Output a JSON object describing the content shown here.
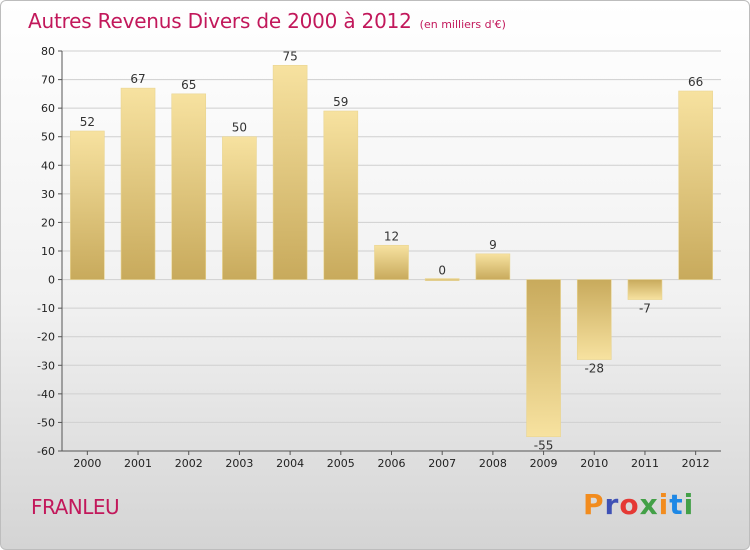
{
  "header": {
    "title": "Autres Revenus Divers de 2000 à 2012",
    "subtitle": "(en milliers d'€)"
  },
  "footer": {
    "commune": "FRANLEU",
    "logo_text": "Proxiti"
  },
  "colors": {
    "title": "#c2185b",
    "bar_light": "#f7e2a0",
    "bar_dark": "#c8aa5c",
    "grid": "#cfcfcf",
    "logo_letters": [
      "#f28c1e",
      "#3f51b5",
      "#e53935",
      "#43a047",
      "#f28c1e",
      "#1e88e5",
      "#43a047"
    ]
  },
  "chart_data": {
    "type": "bar",
    "title": "Autres Revenus Divers de 2000 à 2012",
    "subtitle": "(en milliers d'€)",
    "categories": [
      "2000",
      "2001",
      "2002",
      "2003",
      "2004",
      "2005",
      "2006",
      "2007",
      "2008",
      "2009",
      "2010",
      "2011",
      "2012"
    ],
    "values": [
      52,
      67,
      65,
      50,
      75,
      59,
      12,
      0,
      9,
      -55,
      -28,
      -7,
      66
    ],
    "data_labels": [
      "52",
      "67",
      "65",
      "50",
      "75",
      "59",
      "12",
      "0",
      "9",
      "-55",
      "-28",
      "-7",
      "66"
    ],
    "ylim": [
      -60,
      80
    ],
    "yticks": [
      80,
      70,
      60,
      50,
      40,
      30,
      20,
      10,
      0,
      -10,
      -20,
      -30,
      -40,
      -50,
      -60
    ],
    "ytick_labels": [
      "80",
      "70",
      "60",
      "50",
      "40",
      "30",
      "20",
      "10",
      "0",
      "-10",
      "-20",
      "-30",
      "-40",
      "-50",
      "-60"
    ],
    "grid": "horizontal",
    "legend": "none"
  }
}
